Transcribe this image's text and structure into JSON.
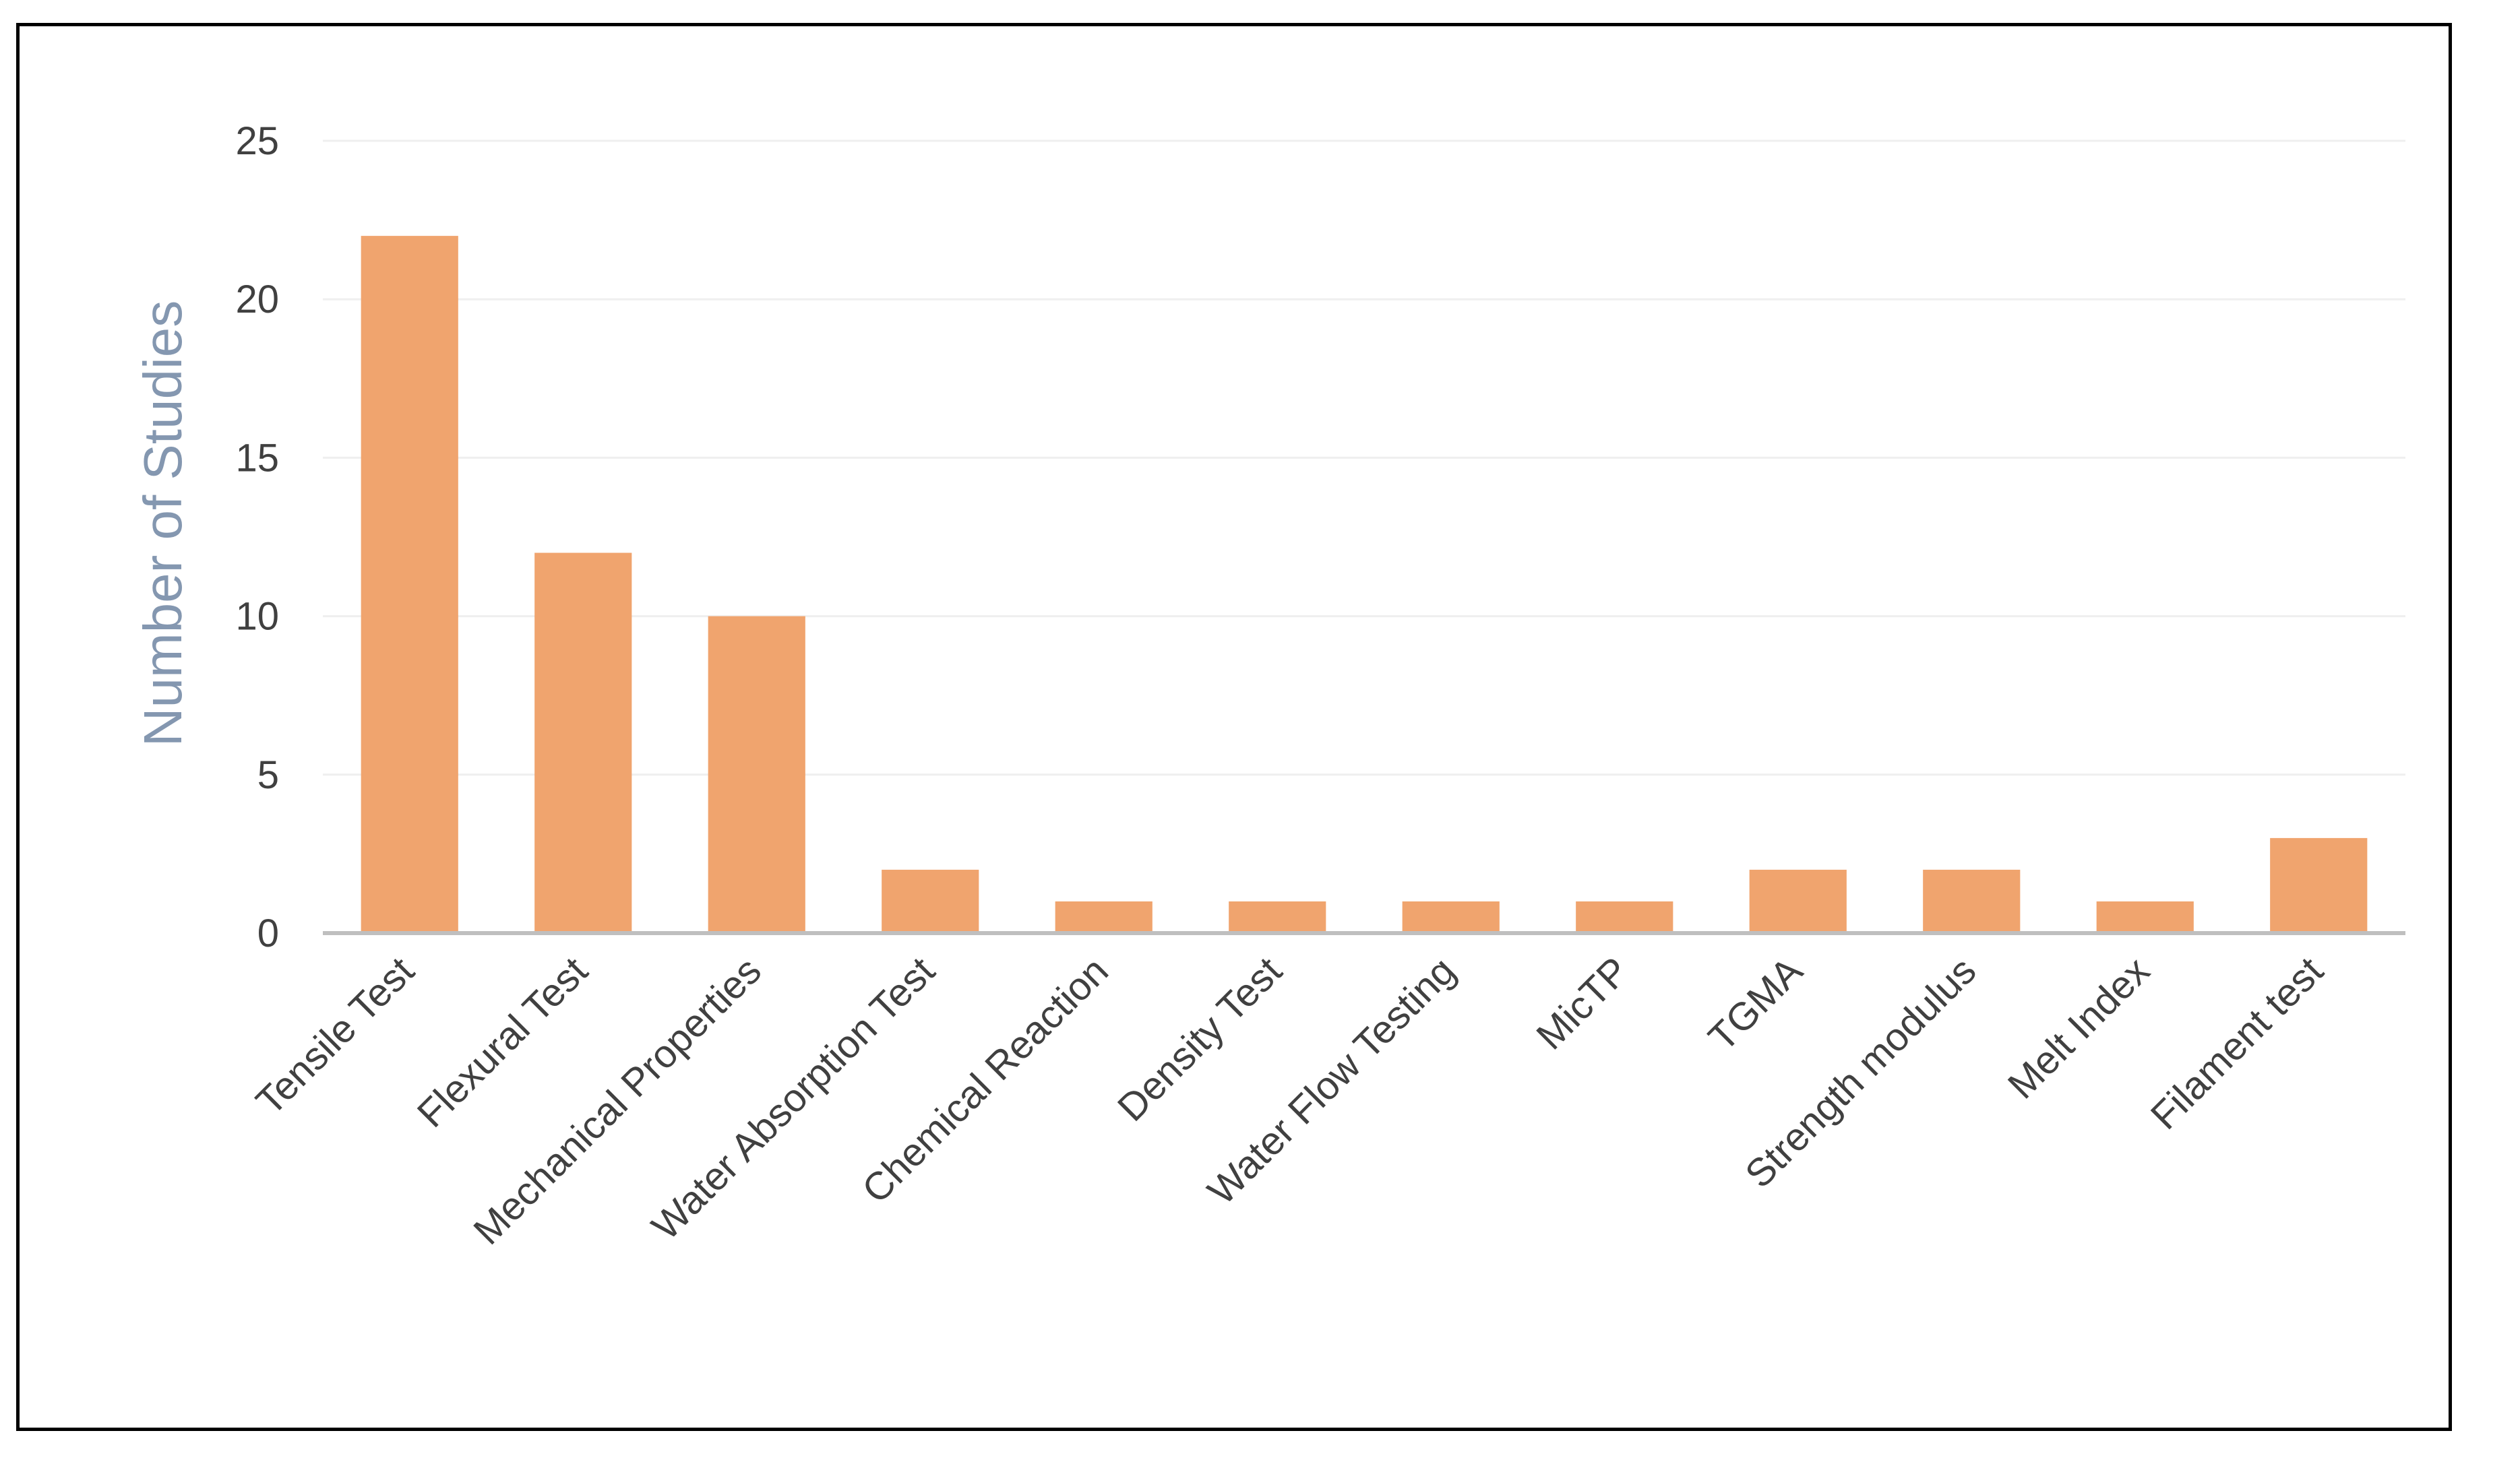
{
  "chart_data": {
    "type": "bar",
    "title": "",
    "xlabel": "",
    "ylabel": "Number of Studies",
    "categories": [
      "Tensile Test",
      "Flexural Test",
      "Mechanical Properties",
      "Water Absorption Test",
      "Chemical Reaction",
      "Density Test",
      "Water Flow Testing",
      "MicTP",
      "TGMA",
      "Strength modulus",
      "Melt Index",
      "Filament test"
    ],
    "values": [
      22,
      12,
      10,
      2,
      1,
      1,
      1,
      1,
      2,
      2,
      1,
      3
    ],
    "ylim": [
      0,
      25
    ],
    "yticks": [
      0,
      5,
      10,
      15,
      20,
      25
    ],
    "ytick_labels": [
      "0",
      "5",
      "10",
      "15",
      "20",
      "25"
    ],
    "grid": true,
    "legend": "none",
    "colors": {
      "bar": "#f0a46e",
      "axis": "#bfbfbf",
      "grid": "#efefef",
      "tick_text": "#404040",
      "axis_title": "#8497b0",
      "frame": "#000000"
    }
  }
}
